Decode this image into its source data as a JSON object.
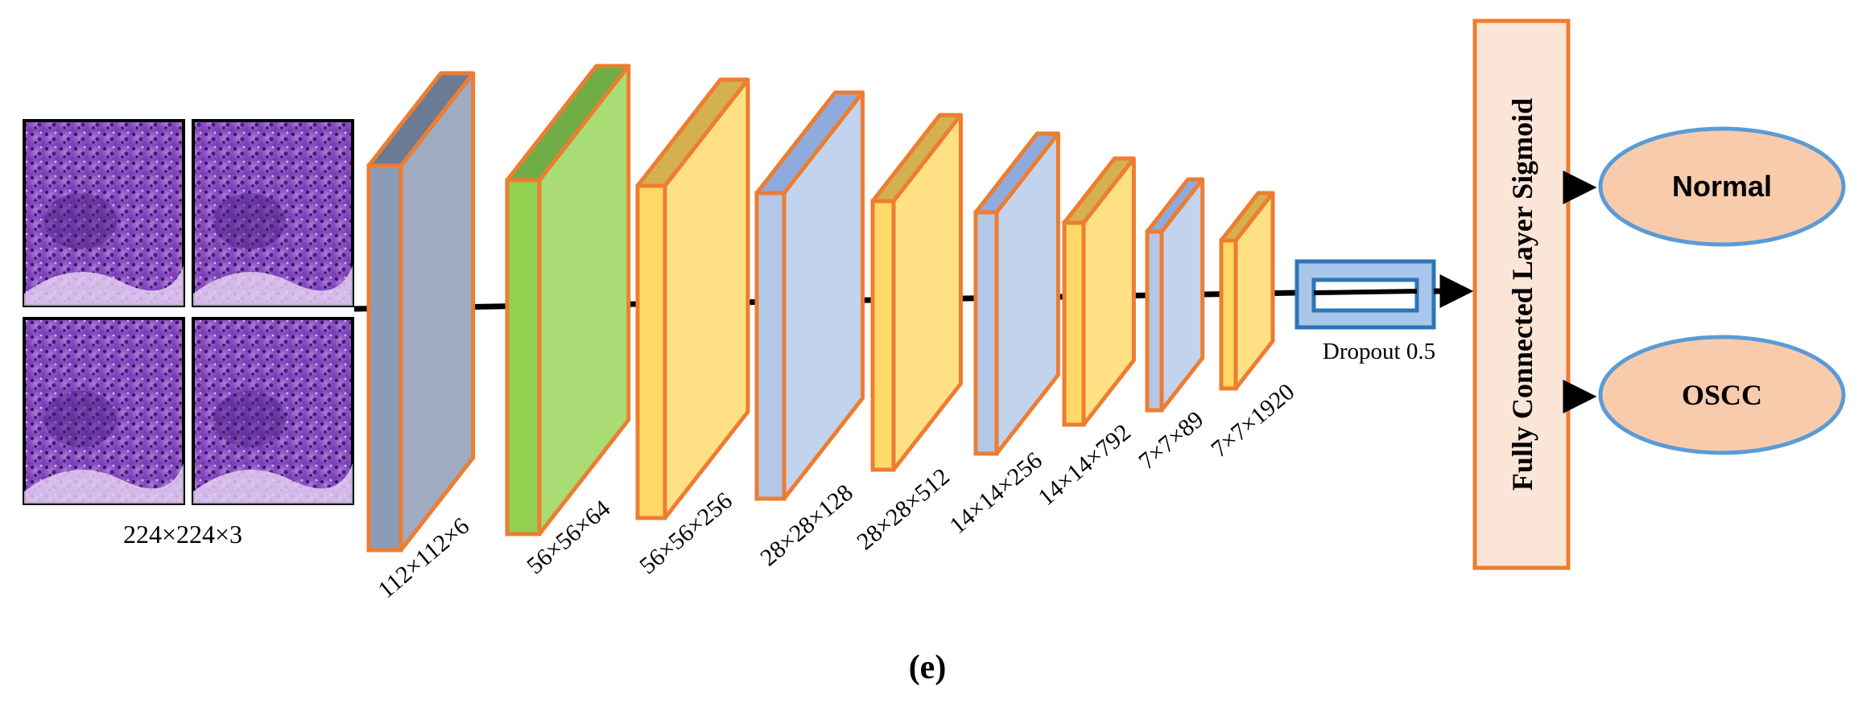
{
  "input": {
    "label": "224×224×3"
  },
  "layers": [
    {
      "label": "112×112×6",
      "front": "#8d9cb5",
      "side": "#9eabc0",
      "top": "#6c7b94"
    },
    {
      "label": "56×56×64",
      "front": "#92d050",
      "side": "#a9dc74",
      "top": "#70ad47"
    },
    {
      "label": "56×56×256",
      "front": "#ffd966",
      "side": "#ffe085",
      "top": "#d4b04e"
    },
    {
      "label": "28×28×128",
      "front": "#b4c7e7",
      "side": "#c2d3ee",
      "top": "#8faadc"
    },
    {
      "label": "28×28×512",
      "front": "#ffd966",
      "side": "#ffe085",
      "top": "#d4b04e"
    },
    {
      "label": "14×14×256",
      "front": "#b4c7e7",
      "side": "#c2d3ee",
      "top": "#8faadc"
    },
    {
      "label": "14×14×792",
      "front": "#ffd966",
      "side": "#ffe085",
      "top": "#d4b04e"
    },
    {
      "label": "7×7×89",
      "front": "#b4c7e7",
      "side": "#c2d3ee",
      "top": "#8faadc"
    },
    {
      "label": "7×7×1920",
      "front": "#ffd966",
      "side": "#ffe085",
      "top": "#d4b04e"
    }
  ],
  "dropout": {
    "label": "Dropout 0.5"
  },
  "fc_layer": {
    "label": "Fully Connected Layer Sigmoid"
  },
  "outputs": [
    {
      "label": "Normal"
    },
    {
      "label": "OSCC"
    }
  ],
  "caption": "(e)",
  "colors": {
    "layer_border": "#ed7d31",
    "line": "#000000",
    "dropout_fill": "#a9c7ea",
    "dropout_border": "#2e75b6",
    "fc_fill": "#fbe5d6",
    "output_fill": "#f8cbad",
    "output_border": "#5b9bd5",
    "tissue_base": "#8a4fc4"
  }
}
